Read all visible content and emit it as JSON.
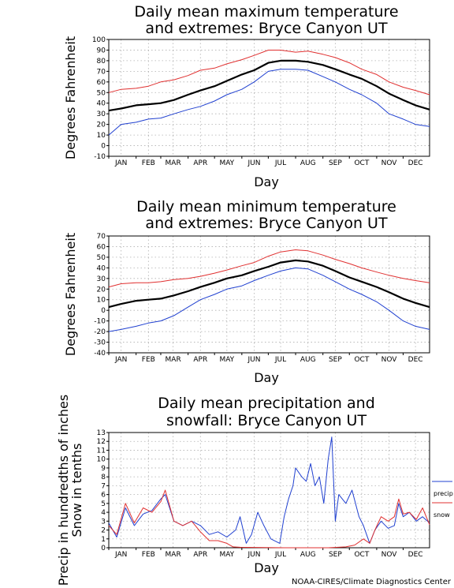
{
  "credit": "NOAA-CIRES/Climate Diagnostics Center",
  "colors": {
    "mean": "#000000",
    "max": "#e03030",
    "min": "#2040d0",
    "grid": "#b0b0b0"
  },
  "chart_data": [
    {
      "type": "line",
      "title_lines": [
        "Daily mean maximum temperature",
        "and extremes: Bryce Canyon UT"
      ],
      "ylabel": "Degrees Fahrenheit",
      "xlabel": "Day",
      "months": [
        "JAN",
        "FEB",
        "MAR",
        "APR",
        "MAY",
        "JUN",
        "JUL",
        "AUG",
        "SEP",
        "OCT",
        "NOV",
        "DEC"
      ],
      "ylim": [
        -10,
        100
      ],
      "yticks": [
        -10,
        0,
        10,
        20,
        30,
        40,
        50,
        60,
        70,
        80,
        90,
        100
      ],
      "series": [
        {
          "role": "max",
          "values": [
            [
              1,
              50
            ],
            [
              15,
              53
            ],
            [
              32,
              54
            ],
            [
              46,
              56
            ],
            [
              60,
              60
            ],
            [
              75,
              62
            ],
            [
              91,
              66
            ],
            [
              105,
              71
            ],
            [
              121,
              73
            ],
            [
              135,
              77
            ],
            [
              152,
              81
            ],
            [
              166,
              85
            ],
            [
              182,
              90
            ],
            [
              196,
              90
            ],
            [
              213,
              88
            ],
            [
              227,
              89
            ],
            [
              244,
              86
            ],
            [
              258,
              83
            ],
            [
              274,
              78
            ],
            [
              288,
              72
            ],
            [
              305,
              67
            ],
            [
              319,
              60
            ],
            [
              335,
              55
            ],
            [
              349,
              52
            ],
            [
              365,
              48
            ]
          ]
        },
        {
          "role": "mean",
          "values": [
            [
              1,
              33
            ],
            [
              15,
              35
            ],
            [
              32,
              38
            ],
            [
              46,
              39
            ],
            [
              60,
              40
            ],
            [
              75,
              43
            ],
            [
              91,
              48
            ],
            [
              105,
              52
            ],
            [
              121,
              56
            ],
            [
              135,
              61
            ],
            [
              152,
              67
            ],
            [
              166,
              71
            ],
            [
              182,
              78
            ],
            [
              196,
              80
            ],
            [
              213,
              80
            ],
            [
              227,
              79
            ],
            [
              244,
              76
            ],
            [
              258,
              72
            ],
            [
              274,
              67
            ],
            [
              288,
              63
            ],
            [
              305,
              56
            ],
            [
              319,
              49
            ],
            [
              335,
              43
            ],
            [
              349,
              38
            ],
            [
              365,
              34
            ]
          ]
        },
        {
          "role": "min",
          "values": [
            [
              1,
              10
            ],
            [
              15,
              20
            ],
            [
              32,
              22
            ],
            [
              46,
              25
            ],
            [
              60,
              26
            ],
            [
              75,
              30
            ],
            [
              91,
              34
            ],
            [
              105,
              37
            ],
            [
              121,
              42
            ],
            [
              135,
              48
            ],
            [
              152,
              53
            ],
            [
              166,
              60
            ],
            [
              182,
              70
            ],
            [
              196,
              72
            ],
            [
              213,
              72
            ],
            [
              227,
              71
            ],
            [
              244,
              65
            ],
            [
              258,
              60
            ],
            [
              274,
              53
            ],
            [
              288,
              48
            ],
            [
              305,
              40
            ],
            [
              319,
              30
            ],
            [
              335,
              25
            ],
            [
              349,
              20
            ],
            [
              365,
              18
            ]
          ]
        }
      ]
    },
    {
      "type": "line",
      "title_lines": [
        "Daily mean minimum temperature",
        "and extremes: Bryce Canyon UT"
      ],
      "ylabel": "Degrees Fahrenheit",
      "xlabel": "Day",
      "months": [
        "JAN",
        "FEB",
        "MAR",
        "APR",
        "MAY",
        "JUN",
        "JUL",
        "AUG",
        "SEP",
        "OCT",
        "NOV",
        "DEC"
      ],
      "ylim": [
        -40,
        70
      ],
      "yticks": [
        -40,
        -30,
        -20,
        -10,
        0,
        10,
        20,
        30,
        40,
        50,
        60,
        70
      ],
      "series": [
        {
          "role": "max",
          "values": [
            [
              1,
              22
            ],
            [
              15,
              25
            ],
            [
              32,
              26
            ],
            [
              46,
              26
            ],
            [
              60,
              27
            ],
            [
              75,
              29
            ],
            [
              91,
              30
            ],
            [
              105,
              32
            ],
            [
              121,
              35
            ],
            [
              135,
              38
            ],
            [
              152,
              42
            ],
            [
              166,
              45
            ],
            [
              182,
              51
            ],
            [
              196,
              55
            ],
            [
              213,
              57
            ],
            [
              227,
              56
            ],
            [
              244,
              52
            ],
            [
              258,
              48
            ],
            [
              274,
              44
            ],
            [
              288,
              40
            ],
            [
              305,
              36
            ],
            [
              319,
              33
            ],
            [
              335,
              30
            ],
            [
              349,
              28
            ],
            [
              365,
              26
            ]
          ]
        },
        {
          "role": "mean",
          "values": [
            [
              1,
              3
            ],
            [
              15,
              6
            ],
            [
              32,
              9
            ],
            [
              46,
              10
            ],
            [
              60,
              11
            ],
            [
              75,
              14
            ],
            [
              91,
              18
            ],
            [
              105,
              22
            ],
            [
              121,
              26
            ],
            [
              135,
              30
            ],
            [
              152,
              33
            ],
            [
              166,
              37
            ],
            [
              182,
              41
            ],
            [
              196,
              45
            ],
            [
              213,
              47
            ],
            [
              227,
              46
            ],
            [
              244,
              42
            ],
            [
              258,
              37
            ],
            [
              274,
              31
            ],
            [
              288,
              27
            ],
            [
              305,
              22
            ],
            [
              319,
              17
            ],
            [
              335,
              11
            ],
            [
              349,
              7
            ],
            [
              365,
              3
            ]
          ]
        },
        {
          "role": "min",
          "values": [
            [
              1,
              -20
            ],
            [
              15,
              -18
            ],
            [
              32,
              -15
            ],
            [
              46,
              -12
            ],
            [
              60,
              -10
            ],
            [
              75,
              -5
            ],
            [
              91,
              3
            ],
            [
              105,
              10
            ],
            [
              121,
              15
            ],
            [
              135,
              20
            ],
            [
              152,
              23
            ],
            [
              166,
              28
            ],
            [
              182,
              33
            ],
            [
              196,
              37
            ],
            [
              213,
              40
            ],
            [
              227,
              39
            ],
            [
              244,
              33
            ],
            [
              258,
              27
            ],
            [
              274,
              20
            ],
            [
              288,
              15
            ],
            [
              305,
              8
            ],
            [
              319,
              0
            ],
            [
              335,
              -10
            ],
            [
              349,
              -15
            ],
            [
              365,
              -18
            ]
          ]
        }
      ]
    },
    {
      "type": "line",
      "title_lines": [
        "Daily mean precipitation and",
        "snowfall: Bryce Canyon UT"
      ],
      "ylabel_lines": [
        "Precip in hundredths of inches",
        "Snow in tenths"
      ],
      "xlabel": "Day",
      "months": [
        "JAN",
        "FEB",
        "MAR",
        "APR",
        "MAY",
        "JUN",
        "JUL",
        "AUG",
        "SEP",
        "OCT",
        "NOV",
        "DEC"
      ],
      "ylim": [
        0,
        13
      ],
      "yticks": [
        0,
        1,
        2,
        3,
        4,
        5,
        6,
        7,
        8,
        9,
        10,
        11,
        12,
        13
      ],
      "series": [
        {
          "name": "precip",
          "role": "min",
          "values": [
            [
              1,
              2.8
            ],
            [
              10,
              1.2
            ],
            [
              20,
              4.5
            ],
            [
              30,
              2.5
            ],
            [
              40,
              3.8
            ],
            [
              50,
              4.2
            ],
            [
              60,
              5.5
            ],
            [
              65,
              6.0
            ],
            [
              75,
              3.0
            ],
            [
              85,
              2.5
            ],
            [
              95,
              3.0
            ],
            [
              105,
              2.5
            ],
            [
              115,
              1.5
            ],
            [
              125,
              1.8
            ],
            [
              135,
              1.2
            ],
            [
              145,
              2.0
            ],
            [
              150,
              3.5
            ],
            [
              157,
              0.5
            ],
            [
              163,
              1.5
            ],
            [
              170,
              4.0
            ],
            [
              177,
              2.5
            ],
            [
              185,
              1.0
            ],
            [
              195,
              0.5
            ],
            [
              200,
              3.5
            ],
            [
              205,
              5.5
            ],
            [
              210,
              7.0
            ],
            [
              213,
              9.0
            ],
            [
              220,
              8.0
            ],
            [
              225,
              7.5
            ],
            [
              230,
              9.5
            ],
            [
              235,
              7.0
            ],
            [
              240,
              8.0
            ],
            [
              245,
              5.0
            ],
            [
              250,
              10.0
            ],
            [
              254,
              12.5
            ],
            [
              258,
              3.0
            ],
            [
              262,
              6.0
            ],
            [
              270,
              5.0
            ],
            [
              277,
              6.5
            ],
            [
              285,
              3.5
            ],
            [
              290,
              2.5
            ],
            [
              297,
              0.5
            ],
            [
              303,
              2.0
            ],
            [
              310,
              3.0
            ],
            [
              318,
              2.2
            ],
            [
              325,
              2.5
            ],
            [
              330,
              5.0
            ],
            [
              335,
              3.5
            ],
            [
              342,
              4.0
            ],
            [
              350,
              3.0
            ],
            [
              357,
              3.5
            ],
            [
              365,
              2.8
            ]
          ]
        },
        {
          "name": "snow",
          "role": "max",
          "values": [
            [
              1,
              2.5
            ],
            [
              10,
              1.5
            ],
            [
              20,
              5.0
            ],
            [
              30,
              2.8
            ],
            [
              40,
              4.5
            ],
            [
              50,
              4.0
            ],
            [
              60,
              5.2
            ],
            [
              65,
              6.5
            ],
            [
              75,
              3.0
            ],
            [
              85,
              2.5
            ],
            [
              95,
              3.0
            ],
            [
              105,
              1.8
            ],
            [
              115,
              0.8
            ],
            [
              125,
              0.8
            ],
            [
              135,
              0.5
            ],
            [
              142,
              0.1
            ],
            [
              150,
              0.05
            ],
            [
              200,
              0.0
            ],
            [
              250,
              0.0
            ],
            [
              270,
              0.1
            ],
            [
              280,
              0.3
            ],
            [
              290,
              1.0
            ],
            [
              297,
              0.5
            ],
            [
              303,
              2.0
            ],
            [
              310,
              3.5
            ],
            [
              318,
              3.0
            ],
            [
              325,
              3.5
            ],
            [
              330,
              5.5
            ],
            [
              335,
              3.8
            ],
            [
              342,
              4.0
            ],
            [
              350,
              3.2
            ],
            [
              357,
              4.5
            ],
            [
              365,
              2.6
            ]
          ]
        }
      ]
    }
  ]
}
